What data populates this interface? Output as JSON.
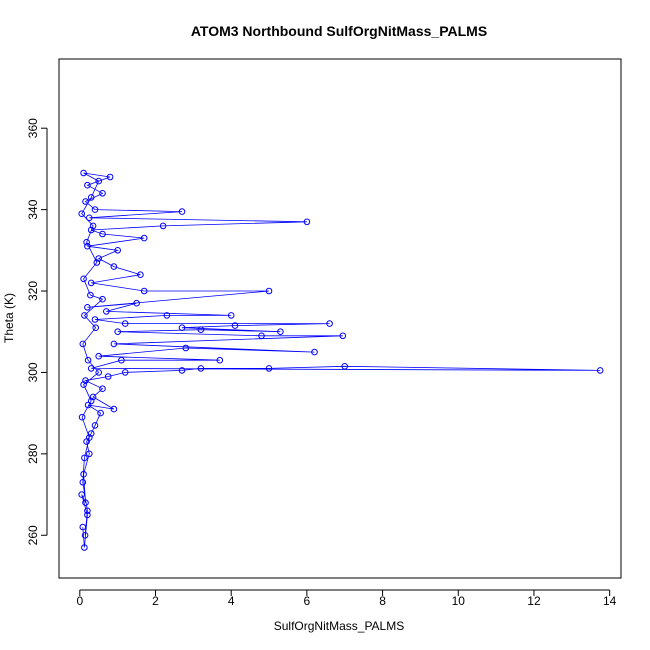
{
  "chart_data": {
    "type": "scatter",
    "title": "ATOM3 Northbound SulfOrgNitMass_PALMS",
    "xlabel": "SulfOrgNitMass_PALMS",
    "ylabel": "Theta (K)",
    "xlim": [
      -0.55,
      14.3
    ],
    "ylim": [
      249.5,
      377
    ],
    "xticks": [
      0,
      2,
      4,
      6,
      8,
      10,
      12,
      14
    ],
    "yticks": [
      260,
      280,
      300,
      320,
      340,
      360
    ],
    "grid": false,
    "colors": {
      "series": "#0000ff",
      "axis": "#000000"
    },
    "series": [
      {
        "name": "SulfOrgNitMass_PALMS",
        "mode": "lines+markers",
        "points": [
          [
            0.08,
            262
          ],
          [
            0.12,
            257
          ],
          [
            0.2,
            265
          ],
          [
            0.05,
            270
          ],
          [
            0.15,
            268
          ],
          [
            0.1,
            275
          ],
          [
            0.25,
            280
          ],
          [
            0.18,
            283
          ],
          [
            0.3,
            285
          ],
          [
            0.4,
            287
          ],
          [
            0.55,
            290
          ],
          [
            0.22,
            292
          ],
          [
            0.9,
            291
          ],
          [
            0.35,
            294
          ],
          [
            0.6,
            296
          ],
          [
            0.15,
            298
          ],
          [
            0.75,
            299
          ],
          [
            1.2,
            300
          ],
          [
            2.7,
            300.5
          ],
          [
            3.2,
            301
          ],
          [
            5.0,
            301
          ],
          [
            7.0,
            301.5
          ],
          [
            13.75,
            300.5
          ],
          [
            0.3,
            301
          ],
          [
            1.1,
            303
          ],
          [
            3.7,
            303
          ],
          [
            0.5,
            304
          ],
          [
            2.8,
            306
          ],
          [
            6.2,
            305
          ],
          [
            0.9,
            307
          ],
          [
            6.95,
            309
          ],
          [
            4.8,
            309
          ],
          [
            1.0,
            310
          ],
          [
            3.2,
            310.5
          ],
          [
            5.3,
            310
          ],
          [
            2.7,
            311
          ],
          [
            4.1,
            311.5
          ],
          [
            6.6,
            312
          ],
          [
            1.2,
            312
          ],
          [
            0.4,
            313
          ],
          [
            2.3,
            314
          ],
          [
            4.0,
            314
          ],
          [
            0.7,
            315
          ],
          [
            1.5,
            317
          ],
          [
            0.2,
            316
          ],
          [
            5.0,
            320
          ],
          [
            1.7,
            320
          ],
          [
            0.3,
            322
          ],
          [
            1.6,
            324
          ],
          [
            0.9,
            326
          ],
          [
            0.5,
            328
          ],
          [
            1.0,
            330
          ],
          [
            0.2,
            331
          ],
          [
            1.7,
            333
          ],
          [
            0.6,
            334
          ],
          [
            0.3,
            335
          ],
          [
            2.2,
            336
          ],
          [
            6.0,
            337
          ],
          [
            0.25,
            338
          ],
          [
            2.7,
            339.5
          ],
          [
            0.4,
            340
          ],
          [
            0.15,
            342
          ],
          [
            0.6,
            344
          ],
          [
            0.2,
            346
          ],
          [
            0.8,
            348
          ],
          [
            0.1,
            349
          ],
          [
            0.5,
            347
          ],
          [
            0.3,
            343
          ],
          [
            0.05,
            339
          ],
          [
            0.35,
            336
          ],
          [
            0.18,
            332
          ],
          [
            0.45,
            327
          ],
          [
            0.1,
            323
          ],
          [
            0.28,
            319
          ],
          [
            0.6,
            318
          ],
          [
            0.12,
            314
          ],
          [
            0.42,
            311
          ],
          [
            0.08,
            307
          ],
          [
            0.22,
            303
          ],
          [
            0.5,
            300
          ],
          [
            0.1,
            297
          ],
          [
            0.3,
            293
          ],
          [
            0.06,
            289
          ],
          [
            0.25,
            284
          ],
          [
            0.12,
            279
          ],
          [
            0.08,
            273
          ],
          [
            0.2,
            266
          ],
          [
            0.14,
            260
          ]
        ]
      }
    ]
  }
}
